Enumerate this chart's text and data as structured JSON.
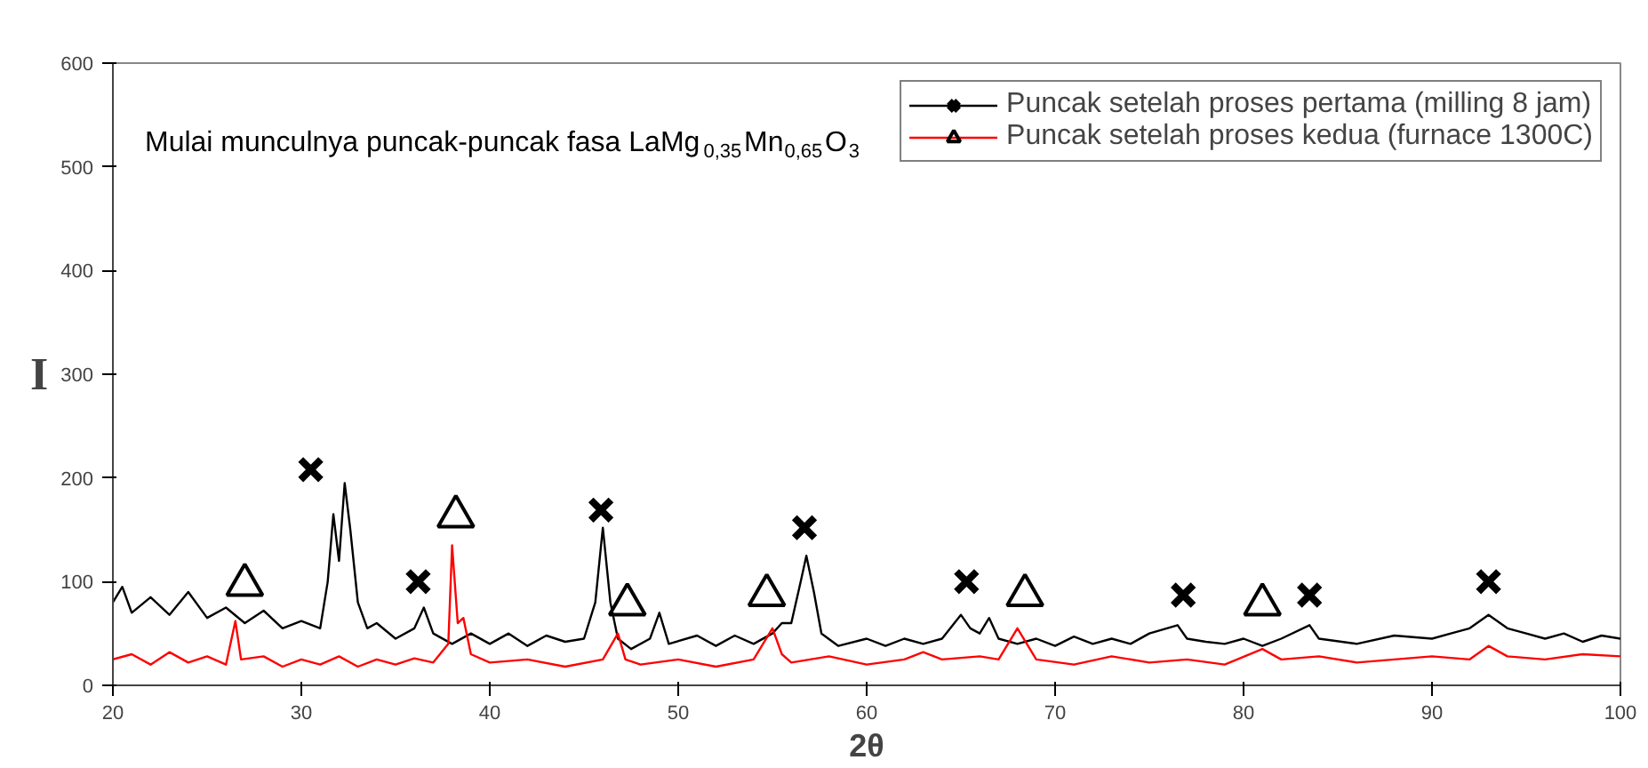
{
  "chart_data": {
    "type": "line",
    "xlabel": "2θ",
    "ylabel": "I",
    "annotations": [
      "Mulai munculnya puncak-puncak fasa LaMg$_{0,35}$Mn$_{0,65}$O$_{3}$"
    ],
    "xlim": [
      20,
      100
    ],
    "xticks": [
      20,
      30,
      40,
      50,
      60,
      70,
      80,
      90,
      100
    ],
    "ylim": [
      0,
      600
    ],
    "yticks": [
      0,
      100,
      200,
      300,
      400,
      500,
      600
    ],
    "grid": false,
    "legend": "top right",
    "line_style": "solid",
    "series": [
      {
        "name": "Puncak setelah proses pertama (milling 8 jam)",
        "color": "#000000",
        "x": [
          20,
          20.5,
          21,
          22,
          23,
          24,
          25,
          26,
          27,
          28,
          29,
          30,
          31,
          31.4,
          31.7,
          32,
          32.3,
          32.6,
          33,
          33.5,
          34,
          35,
          36,
          36.5,
          37,
          38,
          39,
          40,
          41,
          42,
          43,
          44,
          45,
          45.6,
          46,
          46.4,
          46.8,
          47.5,
          48.5,
          49,
          49.5,
          51,
          52,
          53,
          54,
          55,
          55.5,
          56,
          56.5,
          56.8,
          57.2,
          57.6,
          58.5,
          60,
          61,
          62,
          63,
          64,
          65,
          65.5,
          66,
          66.5,
          67,
          68,
          69,
          70,
          71,
          72,
          73,
          74,
          75,
          76.5,
          77,
          78,
          79,
          80,
          81,
          82,
          83.5,
          84,
          86,
          88,
          90,
          91,
          92,
          93,
          94,
          95,
          96,
          97,
          98,
          99,
          100
        ],
        "values": [
          80,
          95,
          70,
          85,
          68,
          90,
          65,
          75,
          60,
          72,
          55,
          62,
          55,
          100,
          165,
          120,
          195,
          150,
          80,
          55,
          60,
          45,
          55,
          75,
          50,
          40,
          50,
          40,
          50,
          38,
          48,
          42,
          45,
          80,
          152,
          80,
          45,
          35,
          45,
          70,
          40,
          48,
          38,
          48,
          40,
          50,
          60,
          60,
          100,
          125,
          90,
          50,
          38,
          45,
          38,
          45,
          40,
          45,
          68,
          55,
          50,
          65,
          45,
          40,
          45,
          38,
          47,
          40,
          45,
          40,
          50,
          58,
          45,
          42,
          40,
          45,
          38,
          45,
          58,
          45,
          40,
          48,
          45,
          50,
          55,
          68,
          55,
          50,
          45,
          50,
          42,
          48,
          45
        ]
      },
      {
        "name": "Puncak setelah proses kedua (furnace 1300C)",
        "color": "#ff0000",
        "x": [
          20,
          21,
          22,
          23,
          24,
          25,
          26,
          26.5,
          26.8,
          28,
          29,
          30,
          31,
          32,
          33,
          34,
          35,
          36,
          37,
          37.8,
          38,
          38.3,
          38.6,
          39,
          40,
          42,
          44,
          46,
          46.8,
          47.2,
          48,
          50,
          52,
          54,
          55,
          55.5,
          56,
          58,
          60,
          62,
          63,
          64,
          66,
          67,
          68,
          68.5,
          69,
          71,
          73,
          75,
          77,
          79,
          81,
          82,
          84,
          86,
          88,
          90,
          92,
          93,
          94,
          96,
          98,
          100
        ],
        "values": [
          25,
          30,
          20,
          32,
          22,
          28,
          20,
          62,
          25,
          28,
          18,
          25,
          20,
          28,
          18,
          25,
          20,
          26,
          22,
          40,
          135,
          60,
          65,
          30,
          22,
          25,
          18,
          25,
          50,
          25,
          20,
          25,
          18,
          25,
          55,
          30,
          22,
          28,
          20,
          25,
          32,
          25,
          28,
          25,
          55,
          40,
          25,
          20,
          28,
          22,
          25,
          20,
          35,
          25,
          28,
          22,
          25,
          28,
          25,
          38,
          28,
          25,
          30,
          28
        ]
      },
      {
        "type": "scatter",
        "marker": "cross",
        "color": "#000000",
        "x": [
          30.5,
          36.2,
          45.9,
          56.7,
          65.3,
          76.8,
          83.5,
          93
        ],
        "values": [
          208,
          100,
          169,
          152,
          100,
          87,
          87,
          100
        ]
      },
      {
        "type": "scatter",
        "marker": "triangle",
        "color": "#000000",
        "x": [
          27,
          38.2,
          47.3,
          54.7,
          68.4,
          81
        ],
        "values": [
          97,
          163,
          78,
          87,
          87,
          78
        ]
      }
    ]
  }
}
